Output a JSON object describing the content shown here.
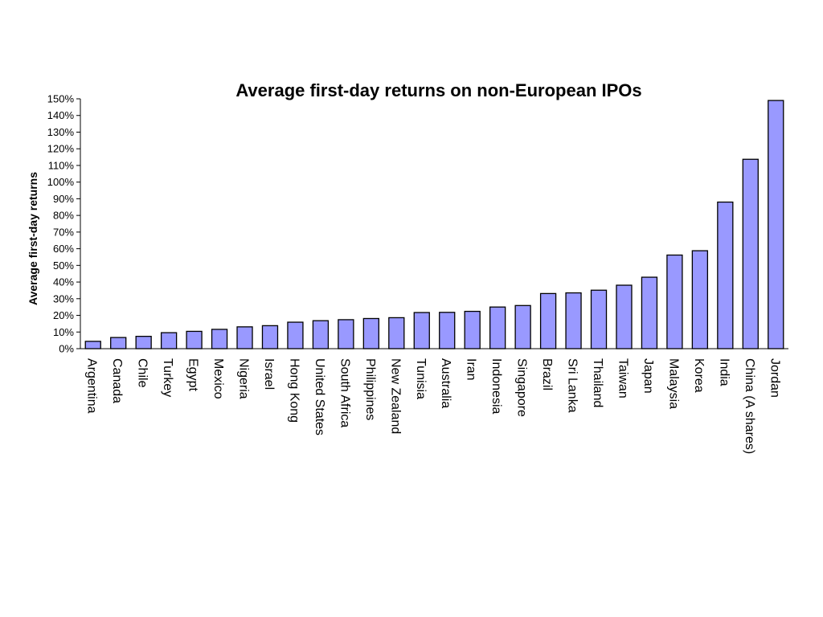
{
  "chart_data": {
    "type": "bar",
    "title": "Average first-day returns on non-European IPOs",
    "xlabel": "",
    "ylabel": "Average first-day returns",
    "ylim": [
      0,
      150
    ],
    "yticks": [
      "0%",
      "10%",
      "20%",
      "30%",
      "40%",
      "50%",
      "60%",
      "70%",
      "80%",
      "90%",
      "100%",
      "110%",
      "120%",
      "130%",
      "140%",
      "150%"
    ],
    "categories": [
      "Argentina",
      "Canada",
      "Chile",
      "Turkey",
      "Egypt",
      "Mexico",
      "Nigeria",
      "Israel",
      "Hong Kong",
      "United States",
      "South Africa",
      "Philippines",
      "New Zealand",
      "Tunisia",
      "Australia",
      "Iran",
      "Indonesia",
      "Singapore",
      "Brazil",
      "Sri Lanka",
      "Thailand",
      "Taiwan",
      "Japan",
      "Malaysia",
      "Korea",
      "India",
      "China (A shares)",
      "Jordan"
    ],
    "values": [
      4.4,
      6.7,
      7.4,
      9.6,
      10.4,
      11.6,
      13.1,
      13.8,
      15.9,
      16.8,
      17.4,
      18.1,
      18.6,
      21.7,
      21.8,
      22.4,
      25.0,
      25.9,
      33.1,
      33.5,
      35.1,
      38.1,
      42.9,
      56.2,
      58.8,
      88.0,
      113.7,
      149.0
    ],
    "bar_color": "#9999ff",
    "grid": false,
    "legend": "none"
  }
}
